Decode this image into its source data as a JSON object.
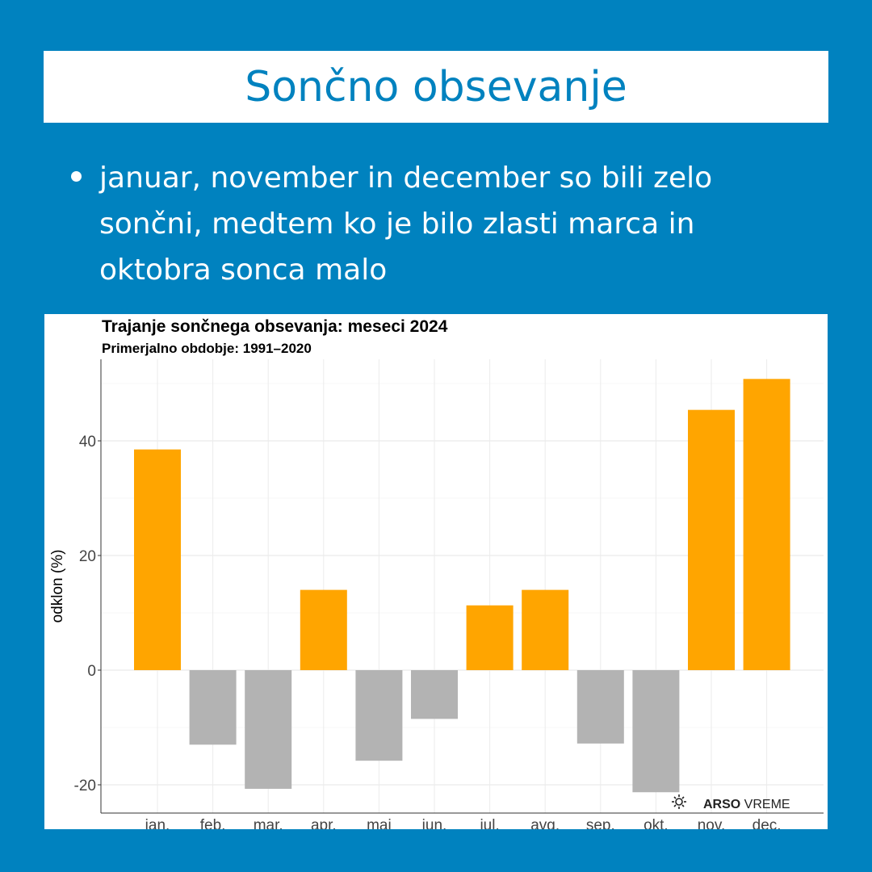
{
  "slide": {
    "title": "Sončno obsevanje",
    "bullet": "januar, november in december so bili zelo sončni, medtem ko je bilo zlasti marca in oktobra sonca malo"
  },
  "colors": {
    "background": "#0082BF",
    "positive": "#FFA500",
    "negative": "#B3B3B3"
  },
  "chart_data": {
    "type": "bar",
    "title": "Trajanje sončnega obsevanja: meseci 2024",
    "subtitle": "Primerjalno obdobje: 1991–2020",
    "xlabel": "",
    "ylabel": "odklon (%)",
    "ylim": [
      -25,
      54
    ],
    "yticks": [
      -20,
      0,
      20,
      40
    ],
    "ytick_labels": [
      "-20",
      "0",
      "20",
      "40"
    ],
    "categories": [
      "jan.",
      "feb.",
      "mar.",
      "apr.",
      "maj",
      "jun.",
      "jul.",
      "avg.",
      "sep.",
      "okt.",
      "nov.",
      "dec."
    ],
    "values": [
      38.5,
      -13,
      -20.7,
      14,
      -15.8,
      -8.5,
      11.3,
      14,
      -12.8,
      -21.3,
      45.4,
      50.8
    ],
    "grid": true,
    "logo": "ARSO VREME"
  }
}
